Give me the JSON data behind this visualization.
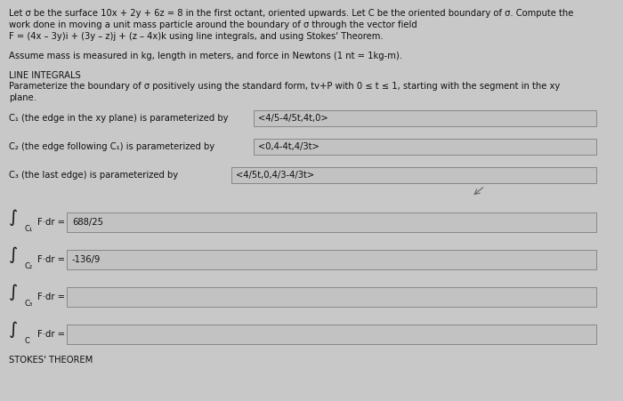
{
  "bg_color": "#c8c8c8",
  "box_fill": "#c2c2c2",
  "box_edge": "#888888",
  "text_color": "#111111",
  "title_line1": "Let σ be the surface 10x + 2y + 6z = 8 in the first octant, oriented upwards. Let C be the oriented boundary of σ. Compute the",
  "title_line2": "work done in moving a unit mass particle around the boundary of σ through the vector field",
  "title_line3": "F = (4x – 3y)i + (3y – z)j + (z – 4x)k using line integrals, and using Stokes' Theorem.",
  "assume_text": "Assume mass is measured in kg, length in meters, and force in Newtons (1 nt = 1kg-m).",
  "line_integrals_header": "LINE INTEGRALS",
  "param_line1": "Parameterize the boundary of σ positively using the standard form, tv+P with 0 ≤ t ≤ 1, starting with the segment in the xy",
  "param_line2": "plane.",
  "c1_label": "C₁ (the edge in the xy plane) is parameterized by",
  "c1_value": "<4/5-4/5t,4t,0>",
  "c2_label": "C₂ (the edge following C₁) is parameterized by",
  "c2_value": "<0,4-4t,4/3t>",
  "c3_label": "C₃ (the last edge) is parameterized by",
  "c3_value": "<4/5t,0,4/3-4/3t>",
  "int_c1_value": "688/25",
  "int_c2_value": "-136/9",
  "int_c3_value": "",
  "int_c_value": "",
  "stokes_header": "STOKES' THEOREM",
  "font_size_main": 7.2,
  "font_size_box": 7.2,
  "font_size_integral": 14,
  "font_size_sub": 6.0,
  "font_size_header": 7.2
}
